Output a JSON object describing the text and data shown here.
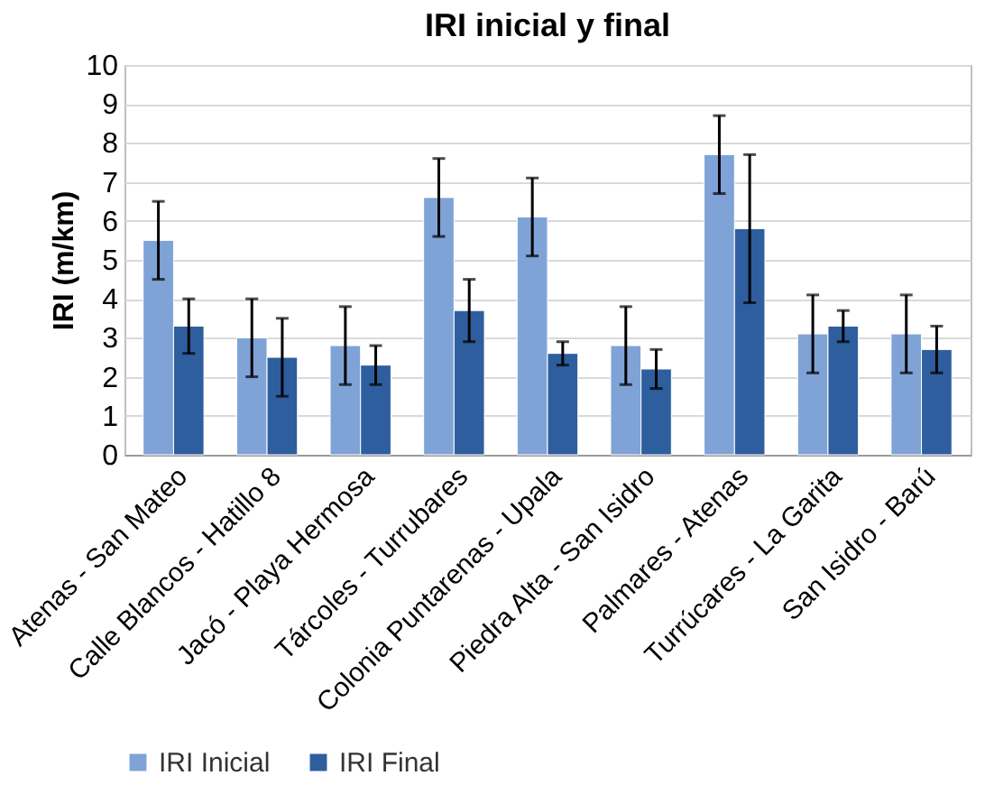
{
  "chart_data": {
    "type": "bar",
    "title": "IRI inicial y final",
    "ylabel": "IRI (m/km)",
    "categories": [
      "Atenas - San Mateo",
      "Calle Blancos - Hatillo 8",
      "Jacó - Playa Hermosa",
      "Tárcoles - Turrubares",
      "Colonia Puntarenas - Upala",
      "Piedra Alta - San Isidro",
      "Palmares - Atenas",
      "Turrúcares - La Garita",
      "San Isidro - Barú"
    ],
    "series": [
      {
        "name": "IRI Inicial",
        "color": "#7fa3d7",
        "values": [
          5.5,
          3.0,
          2.8,
          6.6,
          6.1,
          2.8,
          7.7,
          3.1,
          3.1
        ],
        "errors": [
          1,
          1,
          1,
          1,
          1,
          1,
          1,
          1,
          1
        ]
      },
      {
        "name": "IRI Final",
        "color": "#2e5e9e",
        "values": [
          3.3,
          2.5,
          2.3,
          3.7,
          2.6,
          2.2,
          5.8,
          3.3,
          2.7
        ],
        "errors": [
          0.7,
          1,
          0.5,
          0.8,
          0.3,
          0.5,
          1.9,
          0.4,
          0.6
        ]
      }
    ],
    "ylim": [
      0,
      10
    ],
    "yticks": [
      0,
      1,
      2,
      3,
      4,
      5,
      6,
      7,
      8,
      9,
      10
    ],
    "grid": "y",
    "legend": "bottom"
  }
}
